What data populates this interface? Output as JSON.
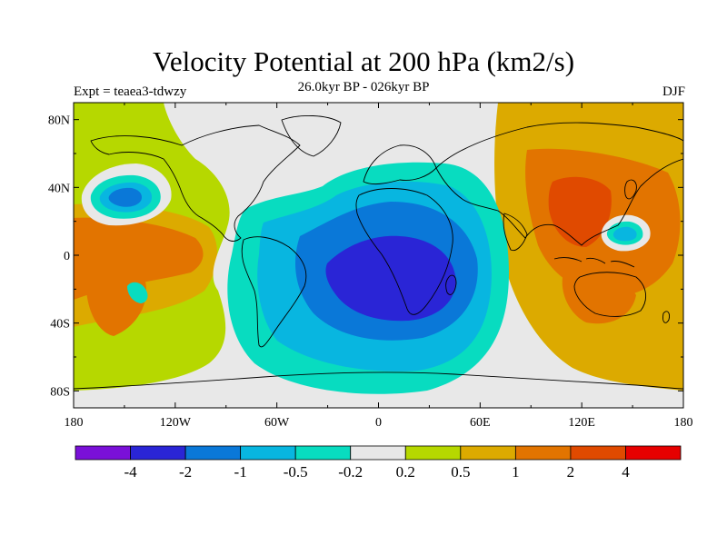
{
  "title": "Velocity Potential at 200 hPa (km2/s)",
  "subtitle": "26.0kyr BP - 026kyr BP",
  "left_label": "Expt = teaea3-tdwzy",
  "right_label": "DJF",
  "map": {
    "lon_range": [
      -180,
      180
    ],
    "lat_range": [
      -90,
      90
    ],
    "lat_ticks": [
      "80N",
      "40N",
      "0",
      "40S",
      "80S"
    ],
    "lat_tick_values": [
      80,
      40,
      0,
      -40,
      -80
    ],
    "lon_ticks": [
      "180",
      "120W",
      "60W",
      "0",
      "60E",
      "120E",
      "180"
    ],
    "lon_tick_values": [
      -180,
      -120,
      -60,
      0,
      60,
      120,
      180
    ]
  },
  "colorbar": {
    "labels": [
      "-4",
      "-2",
      "-1",
      "-0.5",
      "-0.2",
      "0.2",
      "0.5",
      "1",
      "2",
      "4"
    ],
    "colors": [
      "#7a10d8",
      "#2a25d6",
      "#0a78d8",
      "#08b6e0",
      "#08dcc0",
      "#e8e8e8",
      "#b6d800",
      "#dcaa00",
      "#e27400",
      "#e04a00",
      "#e60000"
    ]
  },
  "colors": {
    "neutral": "#e8e8e8",
    "coast": "#000000"
  }
}
